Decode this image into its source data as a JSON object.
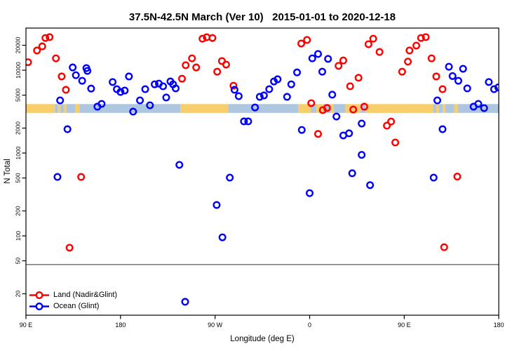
{
  "page": {
    "background": "#FFFFFF"
  },
  "chart_data": {
    "type": "scatter",
    "title": "37.5N-42.5N March (Ver 10)   2015-01-01 to 2020-12-18",
    "xlabel": "Longitude (deg E)",
    "ylabel": "N Total",
    "x_axis": {
      "range_deg": [
        90,
        540
      ],
      "ticks": [
        {
          "deg": 90,
          "label": "90 E"
        },
        {
          "deg": 180,
          "label": "180"
        },
        {
          "deg": 270,
          "label": "90 W"
        },
        {
          "deg": 360,
          "label": "0"
        },
        {
          "deg": 450,
          "label": "90 E"
        },
        {
          "deg": 540,
          "label": "180"
        }
      ]
    },
    "y_axis": {
      "scale": "log",
      "top_value": 32000,
      "bottom_value": 11,
      "ticks": [
        {
          "value": 20000,
          "label": "20000"
        },
        {
          "value": 10000,
          "label": "10000"
        },
        {
          "value": 5000,
          "label": "5000"
        },
        {
          "value": 2000,
          "label": "2000"
        },
        {
          "value": 1000,
          "label": "1000"
        },
        {
          "value": 500,
          "label": "500"
        },
        {
          "value": 200,
          "label": "200"
        },
        {
          "value": 100,
          "label": "100"
        },
        {
          "value": 50,
          "label": "50"
        },
        {
          "value": 20,
          "label": "20"
        }
      ]
    },
    "threshold_line_value": 45,
    "surface_band": {
      "value_top": 3900,
      "value_bottom": 3050,
      "land_color": "#F8CE6D",
      "ocean_color": "#AEC6DF",
      "segments": [
        {
          "from_deg": 90,
          "to_deg": 117.5,
          "surface": "land"
        },
        {
          "from_deg": 117.5,
          "to_deg": 120.5,
          "surface": "ocean"
        },
        {
          "from_deg": 120.5,
          "to_deg": 123,
          "surface": "land"
        },
        {
          "from_deg": 123,
          "to_deg": 126,
          "surface": "ocean"
        },
        {
          "from_deg": 126,
          "to_deg": 128.5,
          "surface": "land"
        },
        {
          "from_deg": 128.5,
          "to_deg": 137,
          "surface": "ocean"
        },
        {
          "from_deg": 137,
          "to_deg": 141,
          "surface": "land"
        },
        {
          "from_deg": 141,
          "to_deg": 237,
          "surface": "ocean"
        },
        {
          "from_deg": 237,
          "to_deg": 282.5,
          "surface": "land"
        },
        {
          "from_deg": 282.5,
          "to_deg": 349,
          "surface": "ocean"
        },
        {
          "from_deg": 349,
          "to_deg": 361,
          "surface": "land"
        },
        {
          "from_deg": 361,
          "to_deg": 366,
          "surface": "ocean"
        },
        {
          "from_deg": 366,
          "to_deg": 373,
          "surface": "land"
        },
        {
          "from_deg": 373,
          "to_deg": 380,
          "surface": "ocean"
        },
        {
          "from_deg": 380,
          "to_deg": 383,
          "surface": "land"
        },
        {
          "from_deg": 383,
          "to_deg": 394,
          "surface": "ocean"
        },
        {
          "from_deg": 394,
          "to_deg": 408.5,
          "surface": "land"
        },
        {
          "from_deg": 408.5,
          "to_deg": 413,
          "surface": "ocean"
        },
        {
          "from_deg": 413,
          "to_deg": 477.5,
          "surface": "land"
        },
        {
          "from_deg": 477.5,
          "to_deg": 480.5,
          "surface": "ocean"
        },
        {
          "from_deg": 480.5,
          "to_deg": 483,
          "surface": "land"
        },
        {
          "from_deg": 483,
          "to_deg": 486.5,
          "surface": "ocean"
        },
        {
          "from_deg": 486.5,
          "to_deg": 489,
          "surface": "land"
        },
        {
          "from_deg": 489,
          "to_deg": 497.5,
          "surface": "ocean"
        },
        {
          "from_deg": 497.5,
          "to_deg": 501,
          "surface": "land"
        },
        {
          "from_deg": 501,
          "to_deg": 540,
          "surface": "ocean"
        }
      ]
    },
    "legend": {
      "items": [
        {
          "label": "Land (Nadir&Glint)",
          "color": "#FF0000"
        },
        {
          "label": "Ocean (Glint)",
          "color": "#0000FF"
        }
      ]
    },
    "series": [
      {
        "name": "Land (Nadir&Glint)",
        "color": "#FF0000",
        "points": [
          [
            92,
            12500
          ],
          [
            100.5,
            17300
          ],
          [
            105.5,
            19400
          ],
          [
            108.5,
            24500
          ],
          [
            112.5,
            25100
          ],
          [
            118.5,
            13900
          ],
          [
            124,
            8400
          ],
          [
            128,
            5800
          ],
          [
            131.5,
            72
          ],
          [
            142.5,
            515
          ],
          [
            238.5,
            7900
          ],
          [
            242,
            11500
          ],
          [
            248,
            13900
          ],
          [
            252,
            10800
          ],
          [
            258,
            24000
          ],
          [
            262,
            25000
          ],
          [
            267.5,
            24500
          ],
          [
            272,
            9600
          ],
          [
            276.5,
            12900
          ],
          [
            280.5,
            11700
          ],
          [
            287.5,
            6500
          ],
          [
            352,
            21000
          ],
          [
            357.5,
            23200
          ],
          [
            361.5,
            4000
          ],
          [
            368,
            1700
          ],
          [
            372.5,
            3300
          ],
          [
            376.5,
            3500
          ],
          [
            387.5,
            11300
          ],
          [
            392,
            13100
          ],
          [
            398.5,
            6400
          ],
          [
            401.5,
            3350
          ],
          [
            406.5,
            8100
          ],
          [
            412,
            3630
          ],
          [
            416,
            20600
          ],
          [
            420.5,
            24000
          ],
          [
            426.5,
            16600
          ],
          [
            433.5,
            2140
          ],
          [
            437.5,
            2400
          ],
          [
            441.5,
            1340
          ],
          [
            448,
            9600
          ],
          [
            453.5,
            12700
          ],
          [
            455,
            17300
          ],
          [
            461.5,
            19800
          ],
          [
            466,
            24500
          ],
          [
            470.5,
            25100
          ],
          [
            476,
            13900
          ],
          [
            480.5,
            8400
          ],
          [
            486.5,
            5900
          ],
          [
            488,
            73
          ],
          [
            500.5,
            520
          ]
        ]
      },
      {
        "name": "Ocean (Glint)",
        "color": "#0000FF",
        "points": [
          [
            120,
            515
          ],
          [
            122.5,
            4320
          ],
          [
            129.5,
            1940
          ],
          [
            134.5,
            10800
          ],
          [
            137.5,
            8700
          ],
          [
            143.5,
            7450
          ],
          [
            147.5,
            10600
          ],
          [
            148.5,
            9800
          ],
          [
            152,
            6000
          ],
          [
            158,
            3630
          ],
          [
            162,
            3920
          ],
          [
            172.5,
            7200
          ],
          [
            176.5,
            5900
          ],
          [
            180,
            5460
          ],
          [
            184,
            5680
          ],
          [
            188,
            8400
          ],
          [
            192,
            3160
          ],
          [
            198.5,
            4320
          ],
          [
            203.5,
            5900
          ],
          [
            208,
            3770
          ],
          [
            212.5,
            6760
          ],
          [
            216.5,
            6890
          ],
          [
            220.5,
            6390
          ],
          [
            223.5,
            4680
          ],
          [
            227.5,
            7310
          ],
          [
            230,
            6760
          ],
          [
            232.5,
            6030
          ],
          [
            236,
            720
          ],
          [
            241.5,
            16
          ],
          [
            271.5,
            236
          ],
          [
            277,
            96
          ],
          [
            284,
            505
          ],
          [
            288.5,
            5800
          ],
          [
            292.5,
            4860
          ],
          [
            297.5,
            2410
          ],
          [
            301.5,
            2410
          ],
          [
            308,
            3550
          ],
          [
            312.5,
            4770
          ],
          [
            316.5,
            4960
          ],
          [
            321.5,
            5900
          ],
          [
            326,
            7310
          ],
          [
            329.5,
            7770
          ],
          [
            338.5,
            4770
          ],
          [
            342.5,
            6760
          ],
          [
            348,
            9400
          ],
          [
            352.5,
            1900
          ],
          [
            360,
            328
          ],
          [
            362.5,
            13900
          ],
          [
            368,
            15700
          ],
          [
            372,
            9600
          ],
          [
            377.5,
            13700
          ],
          [
            381.5,
            5060
          ],
          [
            385.5,
            2760
          ],
          [
            392,
            1630
          ],
          [
            397.5,
            1730
          ],
          [
            400.5,
            570
          ],
          [
            409.5,
            950
          ],
          [
            409.5,
            2270
          ],
          [
            417.5,
            410
          ],
          [
            478,
            505
          ],
          [
            481.5,
            4320
          ],
          [
            486.5,
            1940
          ],
          [
            492.5,
            11000
          ],
          [
            496,
            8500
          ],
          [
            501.5,
            7450
          ],
          [
            506,
            10400
          ],
          [
            510,
            6030
          ],
          [
            516,
            3630
          ],
          [
            520.5,
            3920
          ],
          [
            526,
            3490
          ],
          [
            530.5,
            7200
          ],
          [
            535.5,
            5900
          ],
          [
            539.5,
            6200
          ]
        ]
      }
    ]
  }
}
